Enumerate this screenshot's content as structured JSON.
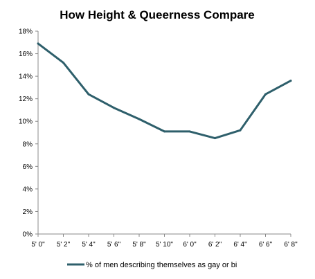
{
  "chart_data": {
    "type": "line",
    "title": "How Height & Queerness Compare",
    "xlabel": "",
    "ylabel": "",
    "categories": [
      "5' 0\"",
      "5' 2\"",
      "5' 4\"",
      "5' 6\"",
      "5' 8\"",
      "5' 10\"",
      "6' 0\"",
      "6' 2\"",
      "6' 4\"",
      "6' 6\"",
      "6' 8\""
    ],
    "y_tick_labels": [
      "0%",
      "2%",
      "4%",
      "6%",
      "8%",
      "10%",
      "12%",
      "14%",
      "16%",
      "18%"
    ],
    "ylim": [
      0,
      18
    ],
    "y_unit": "%",
    "grid": false,
    "legend_position": "bottom",
    "series": [
      {
        "name": "% of men describing themselves as gay or bi",
        "values": [
          16.9,
          15.2,
          12.4,
          11.2,
          10.2,
          9.1,
          9.1,
          8.5,
          9.2,
          12.4,
          13.6
        ],
        "color": "#2e5f6b"
      }
    ]
  }
}
